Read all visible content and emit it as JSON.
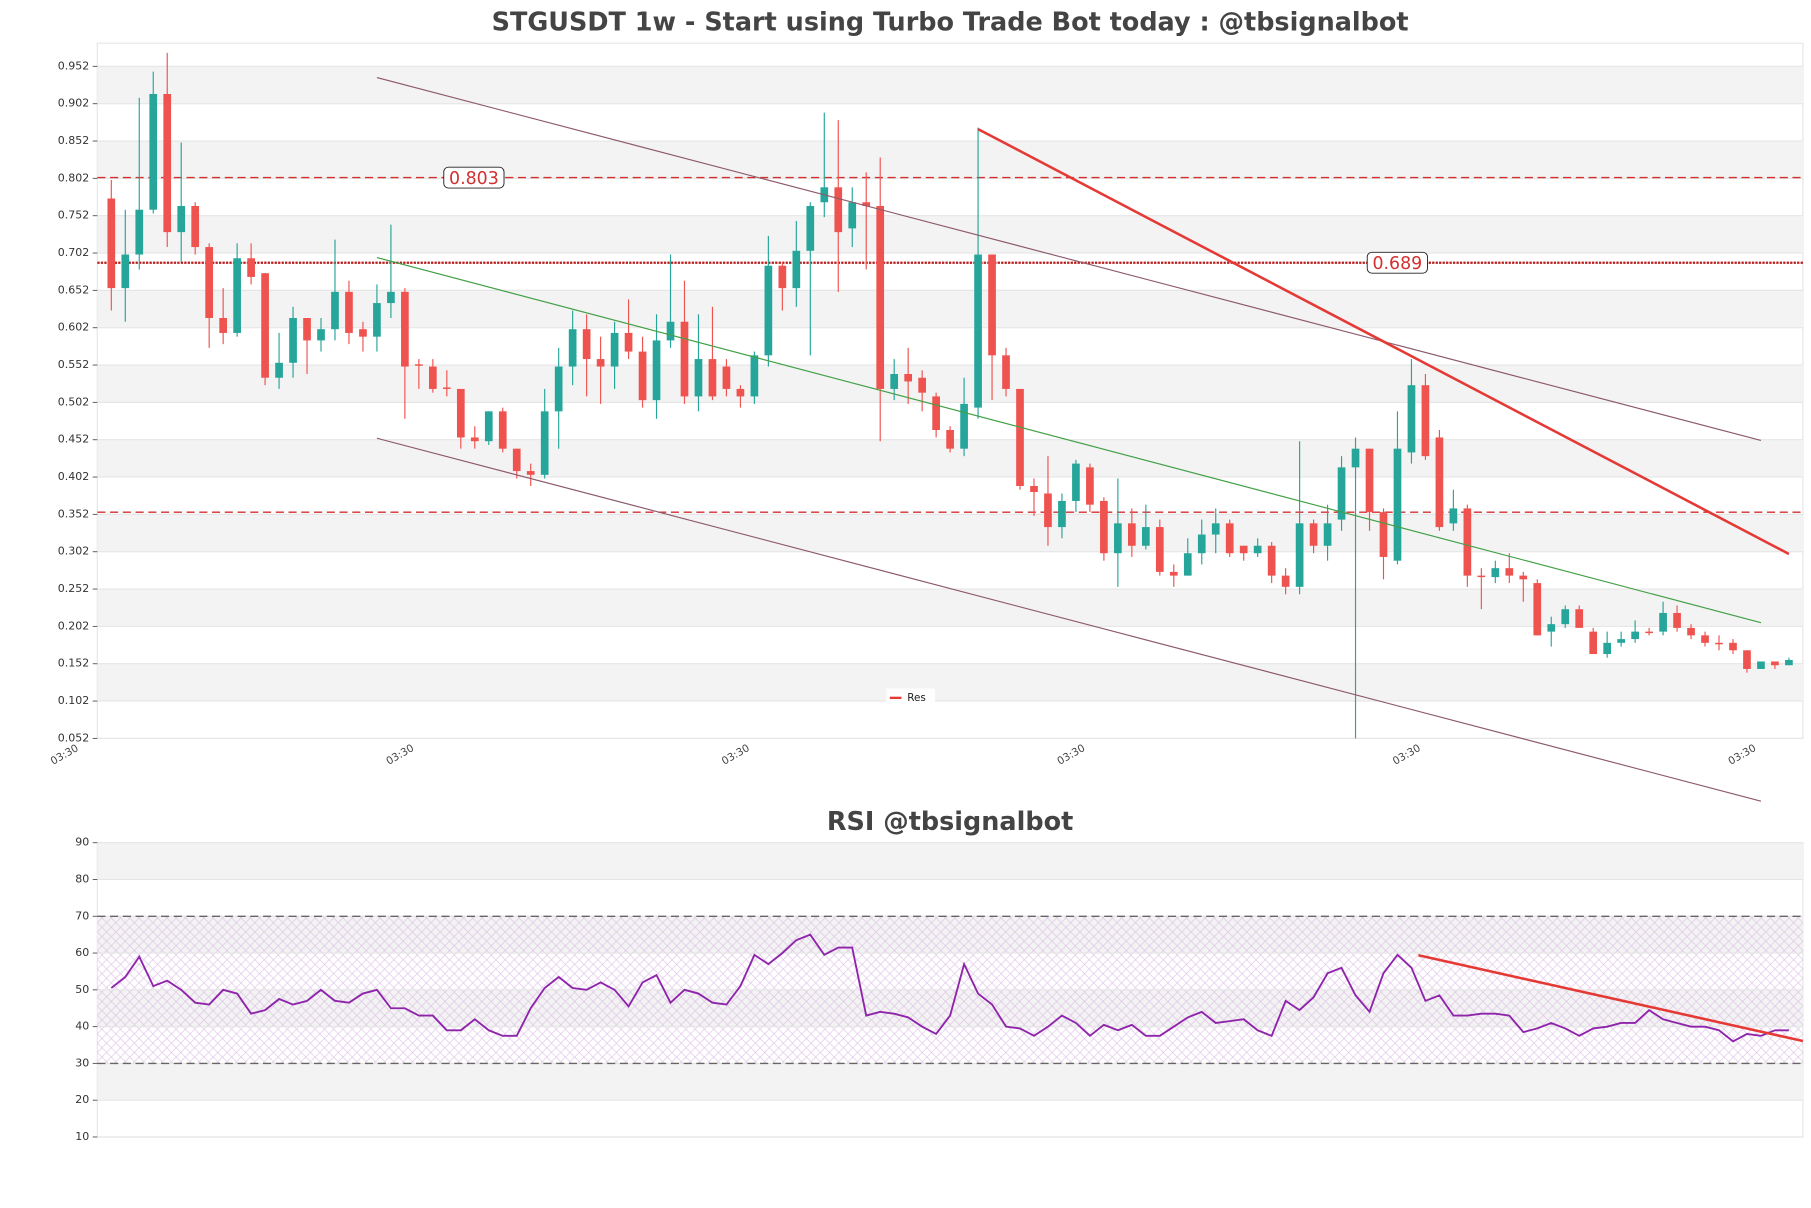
{
  "chart_data": [
    {
      "type": "candlestick",
      "title": "STGUSDT 1w - Start using Turbo Trade Bot today : @tbsignalbot",
      "xlim": [
        -1,
        121
      ],
      "xticks": [
        {
          "value": -2.3,
          "label": "03:30"
        },
        {
          "value": 21.7,
          "label": "03:30"
        },
        {
          "value": 45.7,
          "label": "03:30"
        },
        {
          "value": 69.7,
          "label": "03:30"
        },
        {
          "value": 93.7,
          "label": "03:30"
        },
        {
          "value": 117.7,
          "label": "03:30"
        }
      ],
      "ylim": [
        0.052,
        0.983
      ],
      "yticks": [
        0.052,
        0.102,
        0.152,
        0.202,
        0.252,
        0.302,
        0.352,
        0.402,
        0.452,
        0.502,
        0.552,
        0.602,
        0.652,
        0.702,
        0.752,
        0.802,
        0.852,
        0.902,
        0.952
      ],
      "grid_bands": true,
      "up_color": "#26a69a",
      "down_color": "#ef5350",
      "open": [
        0.775,
        0.655,
        0.7,
        0.76,
        0.915,
        0.73,
        0.765,
        0.71,
        0.615,
        0.595,
        0.695,
        0.675,
        0.535,
        0.555,
        0.615,
        0.585,
        0.6,
        0.65,
        0.6,
        0.59,
        0.635,
        0.65,
        0.553,
        0.55,
        0.522,
        0.52,
        0.455,
        0.45,
        0.49,
        0.44,
        0.41,
        0.405,
        0.49,
        0.55,
        0.6,
        0.56,
        0.55,
        0.595,
        0.57,
        0.505,
        0.585,
        0.61,
        0.51,
        0.56,
        0.55,
        0.52,
        0.51,
        0.565,
        0.685,
        0.655,
        0.705,
        0.77,
        0.79,
        0.735,
        0.77,
        0.765,
        0.52,
        0.54,
        0.535,
        0.51,
        0.465,
        0.44,
        0.495,
        0.7,
        0.565,
        0.52,
        0.39,
        0.38,
        0.335,
        0.37,
        0.415,
        0.37,
        0.3,
        0.34,
        0.31,
        0.335,
        0.275,
        0.27,
        0.3,
        0.325,
        0.34,
        0.31,
        0.3,
        0.31,
        0.27,
        0.255,
        0.34,
        0.31,
        0.345,
        0.415,
        0.44,
        0.355,
        0.29,
        0.435,
        0.525,
        0.455,
        0.34,
        0.36,
        0.27,
        0.268,
        0.28,
        0.27,
        0.26,
        0.195,
        0.205,
        0.225,
        0.195,
        0.165,
        0.18,
        0.185,
        0.195,
        0.195,
        0.22,
        0.2,
        0.19,
        0.18,
        0.18,
        0.17,
        0.145,
        0.155,
        0.15
      ],
      "high": [
        0.8,
        0.76,
        0.91,
        0.945,
        0.97,
        0.85,
        0.77,
        0.715,
        0.655,
        0.715,
        0.715,
        0.675,
        0.595,
        0.63,
        0.615,
        0.615,
        0.72,
        0.665,
        0.61,
        0.66,
        0.74,
        0.655,
        0.56,
        0.56,
        0.545,
        0.52,
        0.47,
        0.49,
        0.495,
        0.44,
        0.42,
        0.52,
        0.575,
        0.625,
        0.62,
        0.59,
        0.61,
        0.64,
        0.59,
        0.62,
        0.7,
        0.665,
        0.62,
        0.63,
        0.56,
        0.525,
        0.57,
        0.725,
        0.69,
        0.745,
        0.77,
        0.89,
        0.88,
        0.79,
        0.81,
        0.83,
        0.56,
        0.575,
        0.545,
        0.515,
        0.47,
        0.535,
        0.87,
        0.7,
        0.575,
        0.52,
        0.4,
        0.43,
        0.38,
        0.425,
        0.42,
        0.375,
        0.4,
        0.36,
        0.365,
        0.345,
        0.285,
        0.32,
        0.345,
        0.36,
        0.345,
        0.31,
        0.32,
        0.315,
        0.28,
        0.45,
        0.345,
        0.365,
        0.43,
        0.455,
        0.44,
        0.36,
        0.49,
        0.56,
        0.54,
        0.465,
        0.385,
        0.365,
        0.28,
        0.29,
        0.3,
        0.275,
        0.265,
        0.215,
        0.23,
        0.23,
        0.2,
        0.195,
        0.195,
        0.21,
        0.2,
        0.235,
        0.23,
        0.205,
        0.195,
        0.19,
        0.185,
        0.17,
        0.155,
        0.155,
        0.16
      ],
      "low": [
        0.625,
        0.61,
        0.68,
        0.755,
        0.71,
        0.69,
        0.7,
        0.575,
        0.58,
        0.59,
        0.66,
        0.525,
        0.52,
        0.535,
        0.54,
        0.57,
        0.585,
        0.58,
        0.57,
        0.57,
        0.615,
        0.48,
        0.52,
        0.515,
        0.51,
        0.44,
        0.44,
        0.445,
        0.435,
        0.4,
        0.39,
        0.4,
        0.44,
        0.525,
        0.51,
        0.5,
        0.52,
        0.56,
        0.495,
        0.48,
        0.575,
        0.5,
        0.49,
        0.505,
        0.51,
        0.495,
        0.5,
        0.55,
        0.625,
        0.63,
        0.565,
        0.75,
        0.65,
        0.71,
        0.68,
        0.45,
        0.505,
        0.5,
        0.49,
        0.455,
        0.435,
        0.43,
        0.48,
        0.505,
        0.51,
        0.385,
        0.35,
        0.31,
        0.32,
        0.355,
        0.355,
        0.29,
        0.255,
        0.295,
        0.305,
        0.27,
        0.255,
        0.27,
        0.285,
        0.3,
        0.295,
        0.29,
        0.295,
        0.26,
        0.245,
        0.245,
        0.3,
        0.29,
        0.33,
        0.05,
        0.33,
        0.265,
        0.285,
        0.42,
        0.425,
        0.33,
        0.33,
        0.255,
        0.225,
        0.26,
        0.26,
        0.235,
        0.19,
        0.175,
        0.2,
        0.2,
        0.165,
        0.16,
        0.175,
        0.18,
        0.19,
        0.19,
        0.195,
        0.185,
        0.175,
        0.17,
        0.165,
        0.14,
        0.145,
        0.145,
        0.15
      ],
      "close": [
        0.655,
        0.7,
        0.76,
        0.915,
        0.73,
        0.765,
        0.71,
        0.615,
        0.595,
        0.695,
        0.67,
        0.535,
        0.555,
        0.615,
        0.585,
        0.6,
        0.65,
        0.595,
        0.59,
        0.635,
        0.65,
        0.55,
        0.551,
        0.52,
        0.52,
        0.455,
        0.45,
        0.49,
        0.44,
        0.41,
        0.405,
        0.49,
        0.55,
        0.6,
        0.56,
        0.55,
        0.595,
        0.57,
        0.505,
        0.585,
        0.61,
        0.51,
        0.56,
        0.51,
        0.52,
        0.51,
        0.565,
        0.685,
        0.655,
        0.705,
        0.765,
        0.79,
        0.73,
        0.77,
        0.765,
        0.52,
        0.54,
        0.53,
        0.515,
        0.465,
        0.44,
        0.5,
        0.7,
        0.565,
        0.52,
        0.39,
        0.382,
        0.335,
        0.37,
        0.42,
        0.365,
        0.3,
        0.34,
        0.31,
        0.335,
        0.275,
        0.27,
        0.3,
        0.325,
        0.34,
        0.3,
        0.3,
        0.31,
        0.27,
        0.255,
        0.34,
        0.31,
        0.34,
        0.415,
        0.44,
        0.355,
        0.295,
        0.44,
        0.525,
        0.43,
        0.335,
        0.36,
        0.27,
        0.268,
        0.28,
        0.27,
        0.265,
        0.19,
        0.205,
        0.225,
        0.2,
        0.165,
        0.18,
        0.185,
        0.195,
        0.193,
        0.22,
        0.2,
        0.19,
        0.18,
        0.178,
        0.17,
        0.145,
        0.155,
        0.15,
        0.157
      ],
      "levels": [
        {
          "value": 0.803,
          "label": "0.803",
          "color": "#d32f2f",
          "style": "dashed"
        },
        {
          "value": 0.689,
          "label": "0.689",
          "color": "#b71c1c",
          "style": "dotted"
        },
        {
          "value": 0.355,
          "color": "#d32f2f",
          "style": "dashed"
        }
      ],
      "trend_lines": [
        {
          "x": [
            19,
            118
          ],
          "y": [
            0.937,
            0.451
          ],
          "color": "#8d5a6b",
          "width": 1
        },
        {
          "x": [
            19,
            118
          ],
          "y": [
            0.454,
            -0.032
          ],
          "color": "#8d5a6b",
          "width": 1
        },
        {
          "x": [
            19,
            118
          ],
          "y": [
            0.696,
            0.207
          ],
          "color": "#43a047",
          "width": 1
        },
        {
          "x": [
            62,
            120
          ],
          "y": [
            0.868,
            0.299
          ],
          "color": "#e53935",
          "width": 2.2
        }
      ],
      "legend": {
        "name": "Res",
        "color": "#e53935"
      }
    },
    {
      "type": "line",
      "title": "RSI @tbsignalbot",
      "xlim": [
        -1,
        121
      ],
      "ylim": [
        10,
        90
      ],
      "yticks": [
        10,
        20,
        30,
        40,
        50,
        60,
        70,
        80,
        90
      ],
      "grid_bands": true,
      "band": [
        30,
        70
      ],
      "levels": [
        {
          "value": 70,
          "color": "#666",
          "style": "dashed"
        },
        {
          "value": 30,
          "color": "#666",
          "style": "dashed"
        }
      ],
      "series": [
        {
          "color": "#8e24aa",
          "values": [
            50.5,
            53.5,
            59,
            51,
            52.5,
            50,
            46.5,
            46,
            50,
            49,
            43.5,
            44.5,
            47.5,
            46,
            47,
            50,
            47,
            46.5,
            49,
            50,
            45,
            45,
            43,
            43,
            39,
            39,
            42,
            39,
            37.5,
            37.5,
            45,
            50.5,
            53.5,
            50.5,
            50,
            52,
            50,
            45.5,
            52,
            54,
            46.5,
            50,
            49,
            46.5,
            46,
            51,
            59.5,
            57,
            60,
            63.5,
            65,
            59.5,
            61.5,
            61.5,
            43,
            44,
            43.5,
            42.5,
            40,
            38,
            43,
            57,
            49,
            46,
            40,
            39.5,
            37.5,
            40,
            43,
            41,
            37.5,
            40.5,
            39,
            40.5,
            37.5,
            37.5,
            40,
            42.5,
            44,
            41,
            41.5,
            42,
            39,
            37.5,
            47,
            44.5,
            48,
            54.5,
            56,
            48.5,
            44,
            54.5,
            59.5,
            56,
            47,
            48.5,
            43,
            43,
            43.5,
            43.5,
            43,
            38.5,
            39.5,
            41,
            39.5,
            37.5,
            39.5,
            40,
            41,
            41,
            44.5,
            42,
            41,
            40,
            40,
            39,
            36,
            38,
            37.5,
            39,
            39
          ]
        }
      ],
      "trend_lines": [
        {
          "x": [
            93.5,
            121
          ],
          "y": [
            59.4,
            36.1
          ],
          "color": "#e53935",
          "width": 2.2
        }
      ]
    }
  ]
}
